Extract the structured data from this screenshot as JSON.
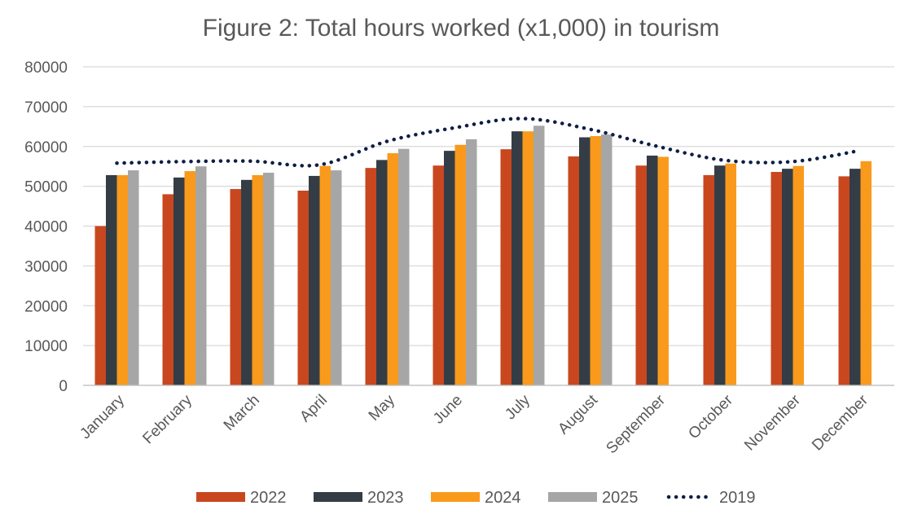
{
  "chart_data": {
    "type": "bar",
    "title": "Figure 2: Total hours worked (x1,000) in tourism",
    "xlabel": "",
    "ylabel": "",
    "categories": [
      "January",
      "February",
      "March",
      "April",
      "May",
      "June",
      "July",
      "August",
      "September",
      "October",
      "November",
      "December"
    ],
    "ylim": [
      0,
      80000
    ],
    "yticks": [
      0,
      10000,
      20000,
      30000,
      40000,
      50000,
      60000,
      70000,
      80000
    ],
    "grid": true,
    "legend_position": "bottom",
    "series": [
      {
        "name": "2022",
        "kind": "bar",
        "color": "#C9471F",
        "values": [
          40000,
          48000,
          49300,
          48900,
          54600,
          55200,
          59300,
          57500,
          55200,
          52800,
          53600,
          52500
        ]
      },
      {
        "name": "2023",
        "kind": "bar",
        "color": "#343D45",
        "values": [
          52800,
          52200,
          51600,
          52600,
          56600,
          58900,
          63800,
          62300,
          57700,
          55200,
          54400,
          54400
        ]
      },
      {
        "name": "2024",
        "kind": "bar",
        "color": "#F99A1C",
        "values": [
          52800,
          53800,
          52800,
          55100,
          58300,
          60400,
          63800,
          62600,
          57400,
          55700,
          55100,
          56300
        ]
      },
      {
        "name": "2025",
        "kind": "bar",
        "color": "#A6A6A6",
        "values": [
          54000,
          55000,
          53400,
          54000,
          59400,
          61800,
          65200,
          63000,
          null,
          null,
          null,
          null
        ]
      },
      {
        "name": "2019",
        "kind": "line",
        "style": "dotted",
        "color": "#0E1E45",
        "values": [
          55800,
          56200,
          56300,
          55400,
          61300,
          64700,
          67000,
          64300,
          60000,
          56500,
          56200,
          59000
        ]
      }
    ]
  }
}
